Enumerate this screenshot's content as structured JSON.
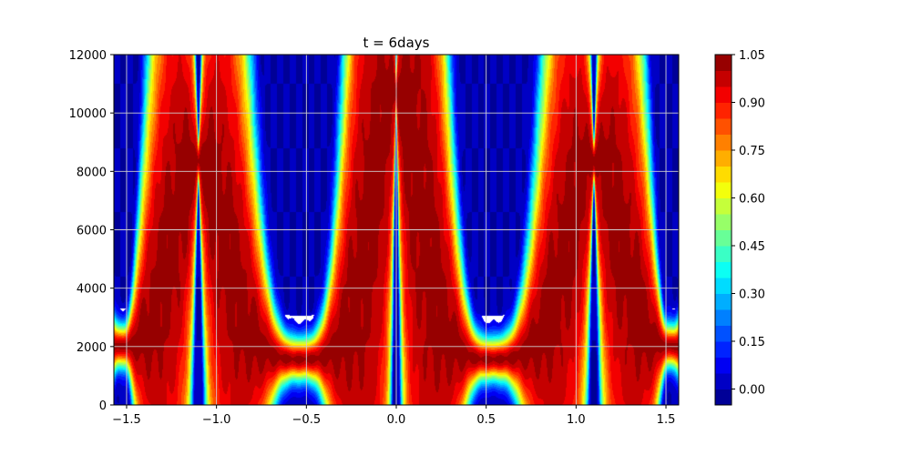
{
  "chart_data": {
    "type": "heatmap",
    "title": "t = 6days",
    "xlabel": "",
    "ylabel": "",
    "xlim": [
      -1.5708,
      1.5708
    ],
    "ylim": [
      0,
      12000
    ],
    "x_ticks": [
      -1.5,
      -1.0,
      -0.5,
      0.0,
      0.5,
      1.0,
      1.5
    ],
    "x_tick_labels": [
      "−1.5",
      "−1.0",
      "−0.5",
      "0.0",
      "0.5",
      "1.0",
      "1.5"
    ],
    "y_ticks": [
      0,
      2000,
      4000,
      6000,
      8000,
      10000,
      12000
    ],
    "y_tick_labels": [
      "0",
      "2000",
      "4000",
      "6000",
      "8000",
      "10000",
      "12000"
    ],
    "grid": true,
    "colormap": "jet",
    "colorbar": {
      "range": [
        -0.05,
        1.05
      ],
      "levels": 22,
      "ticks": [
        0.0,
        0.15,
        0.3,
        0.45,
        0.6,
        0.75,
        0.9,
        1.05
      ],
      "tick_labels": [
        "0.00",
        "0.15",
        "0.30",
        "0.45",
        "0.60",
        "0.75",
        "0.90",
        "1.05"
      ]
    },
    "field": {
      "description_of_features": "tracer filaments",
      "center_crest": {
        "x": 0.0,
        "z_top": 10800,
        "z_bottom_trough": 1400
      },
      "side_crests": [
        {
          "x": -1.1,
          "z_top": 8800
        },
        {
          "x": 1.1,
          "z_top": 8800
        }
      ],
      "troughs": [
        {
          "x": -0.5,
          "z": 1400
        },
        {
          "x": 0.5,
          "z": 1400
        }
      ]
    }
  }
}
